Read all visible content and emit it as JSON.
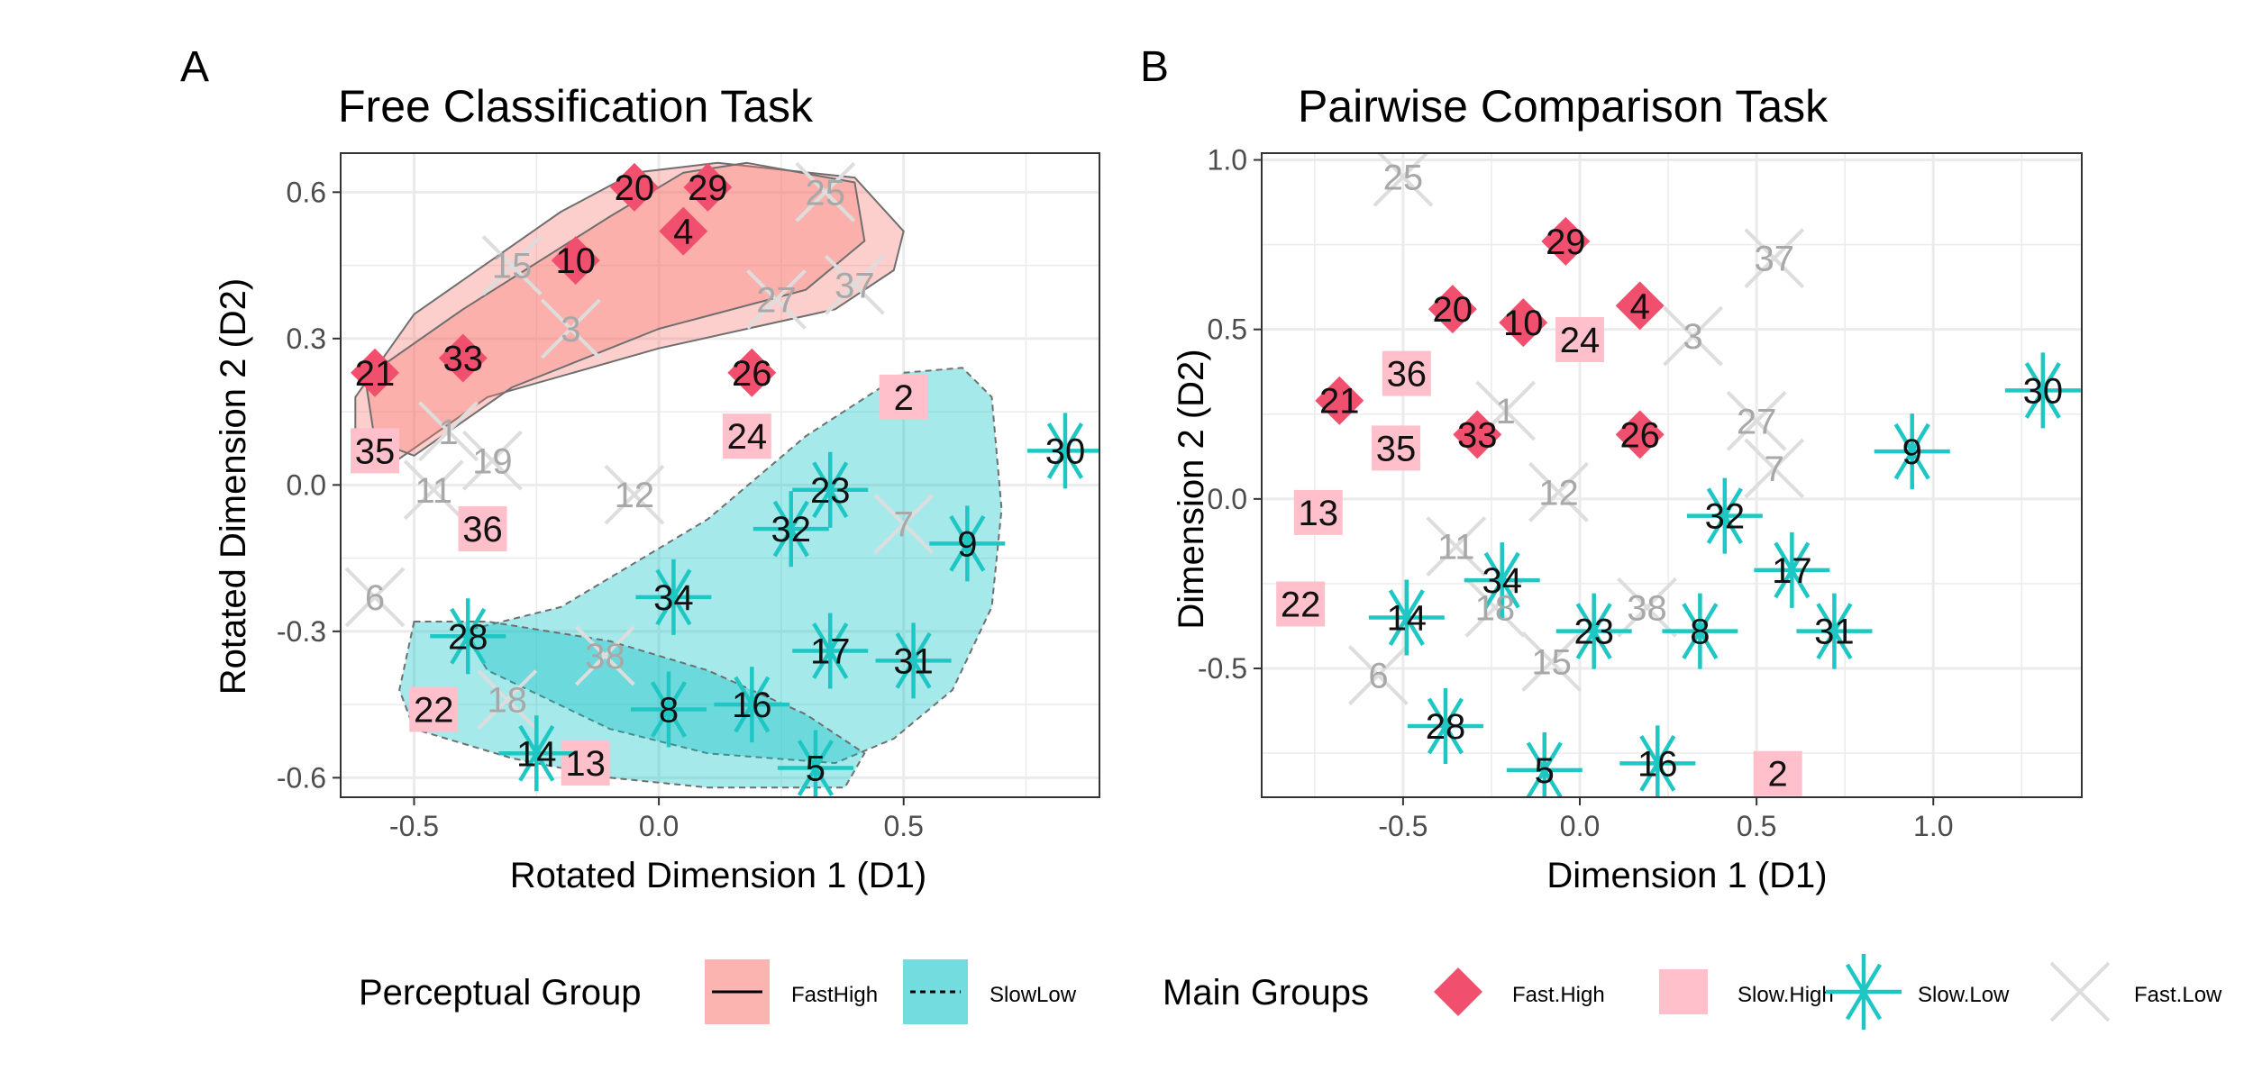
{
  "colors": {
    "fast_high": "#F0506E",
    "slow_high": "#FFC0CB",
    "slow_low": "#1FC7C4",
    "fast_low": "#DDDDDD",
    "fasthigh_fill": "#F8766D",
    "slowlow_fill": "#00BFC4",
    "grid": "#EBEBEB",
    "label_dark": "#111111",
    "label_muted": "#A8A8A8"
  },
  "panels": [
    {
      "letter": "A",
      "chart_data": {
        "type": "scatter",
        "title": "Free Classification Task",
        "xlabel": "Rotated Dimension 1 (D1)",
        "ylabel": "Rotated Dimension 2 (D2)",
        "xlim": [
          -0.65,
          0.9
        ],
        "ylim": [
          -0.64,
          0.68
        ],
        "xticks": [
          -0.5,
          0.0,
          0.5
        ],
        "xtick_labels": [
          "-0.5",
          "0.0",
          "0.5"
        ],
        "yticks": [
          -0.6,
          -0.3,
          0.0,
          0.3,
          0.6
        ],
        "ytick_labels": [
          "-0.6",
          "-0.3",
          "0.0",
          "0.3",
          "0.6"
        ],
        "grid": true,
        "hulls": [
          {
            "group": "FastHigh",
            "linetype": "solid",
            "points": [
              [
                -0.62,
                0.18
              ],
              [
                -0.5,
                0.35
              ],
              [
                -0.2,
                0.56
              ],
              [
                -0.05,
                0.64
              ],
              [
                0.12,
                0.66
              ],
              [
                0.4,
                0.63
              ],
              [
                0.5,
                0.52
              ],
              [
                0.48,
                0.44
              ],
              [
                0.36,
                0.36
              ],
              [
                0.0,
                0.28
              ],
              [
                -0.35,
                0.18
              ],
              [
                -0.55,
                0.04
              ],
              [
                -0.62,
                0.06
              ]
            ]
          },
          {
            "group": "FastHigh",
            "linetype": "solid",
            "points": [
              [
                -0.6,
                0.22
              ],
              [
                -0.4,
                0.36
              ],
              [
                -0.1,
                0.55
              ],
              [
                0.05,
                0.64
              ],
              [
                0.18,
                0.66
              ],
              [
                0.4,
                0.62
              ],
              [
                0.42,
                0.5
              ],
              [
                0.3,
                0.4
              ],
              [
                0.0,
                0.32
              ],
              [
                -0.3,
                0.2
              ],
              [
                -0.5,
                0.06
              ],
              [
                -0.58,
                0.09
              ]
            ]
          },
          {
            "group": "SlowLow",
            "linetype": "dashed",
            "points": [
              [
                0.5,
                0.23
              ],
              [
                0.62,
                0.24
              ],
              [
                0.68,
                0.18
              ],
              [
                0.7,
                -0.05
              ],
              [
                0.68,
                -0.25
              ],
              [
                0.6,
                -0.42
              ],
              [
                0.48,
                -0.52
              ],
              [
                0.36,
                -0.57
              ],
              [
                0.1,
                -0.55
              ],
              [
                -0.1,
                -0.5
              ],
              [
                -0.35,
                -0.38
              ],
              [
                -0.4,
                -0.3
              ],
              [
                -0.2,
                -0.25
              ],
              [
                0.1,
                -0.07
              ],
              [
                0.3,
                0.1
              ]
            ]
          },
          {
            "group": "SlowLow",
            "linetype": "dashed",
            "points": [
              [
                -0.5,
                -0.28
              ],
              [
                -0.35,
                -0.28
              ],
              [
                -0.1,
                -0.32
              ],
              [
                0.1,
                -0.38
              ],
              [
                0.3,
                -0.47
              ],
              [
                0.42,
                -0.55
              ],
              [
                0.38,
                -0.62
              ],
              [
                0.3,
                -0.62
              ],
              [
                0.1,
                -0.62
              ],
              [
                -0.1,
                -0.6
              ],
              [
                -0.3,
                -0.56
              ],
              [
                -0.5,
                -0.5
              ],
              [
                -0.53,
                -0.42
              ]
            ]
          }
        ],
        "points": [
          {
            "label": "20",
            "group": "Fast.High",
            "x": -0.05,
            "y": 0.61
          },
          {
            "label": "29",
            "group": "Fast.High",
            "x": 0.1,
            "y": 0.61
          },
          {
            "label": "4",
            "group": "Fast.High",
            "x": 0.05,
            "y": 0.52
          },
          {
            "label": "10",
            "group": "Fast.High",
            "x": -0.17,
            "y": 0.46
          },
          {
            "label": "21",
            "group": "Fast.High",
            "x": -0.58,
            "y": 0.23
          },
          {
            "label": "33",
            "group": "Fast.High",
            "x": -0.4,
            "y": 0.26
          },
          {
            "label": "26",
            "group": "Fast.High",
            "x": 0.19,
            "y": 0.23
          },
          {
            "label": "2",
            "group": "Slow.High",
            "x": 0.5,
            "y": 0.18
          },
          {
            "label": "24",
            "group": "Slow.High",
            "x": 0.18,
            "y": 0.1
          },
          {
            "label": "35",
            "group": "Slow.High",
            "x": -0.58,
            "y": 0.07
          },
          {
            "label": "36",
            "group": "Slow.High",
            "x": -0.36,
            "y": -0.09
          },
          {
            "label": "22",
            "group": "Slow.High",
            "x": -0.46,
            "y": -0.46
          },
          {
            "label": "13",
            "group": "Slow.High",
            "x": -0.15,
            "y": -0.57
          },
          {
            "label": "30",
            "group": "Slow.Low",
            "x": 0.83,
            "y": 0.07
          },
          {
            "label": "23",
            "group": "Slow.Low",
            "x": 0.35,
            "y": -0.01
          },
          {
            "label": "32",
            "group": "Slow.Low",
            "x": 0.27,
            "y": -0.09
          },
          {
            "label": "9",
            "group": "Slow.Low",
            "x": 0.63,
            "y": -0.12
          },
          {
            "label": "34",
            "group": "Slow.Low",
            "x": 0.03,
            "y": -0.23
          },
          {
            "label": "28",
            "group": "Slow.Low",
            "x": -0.39,
            "y": -0.31
          },
          {
            "label": "17",
            "group": "Slow.Low",
            "x": 0.35,
            "y": -0.34
          },
          {
            "label": "31",
            "group": "Slow.Low",
            "x": 0.52,
            "y": -0.36
          },
          {
            "label": "8",
            "group": "Slow.Low",
            "x": 0.02,
            "y": -0.46
          },
          {
            "label": "16",
            "group": "Slow.Low",
            "x": 0.19,
            "y": -0.45
          },
          {
            "label": "14",
            "group": "Slow.Low",
            "x": -0.25,
            "y": -0.55
          },
          {
            "label": "5",
            "group": "Slow.Low",
            "x": 0.32,
            "y": -0.58
          },
          {
            "label": "25",
            "group": "Fast.Low",
            "x": 0.34,
            "y": 0.6
          },
          {
            "label": "15",
            "group": "Fast.Low",
            "x": -0.3,
            "y": 0.45
          },
          {
            "label": "27",
            "group": "Fast.Low",
            "x": 0.24,
            "y": 0.38
          },
          {
            "label": "37",
            "group": "Fast.Low",
            "x": 0.4,
            "y": 0.41
          },
          {
            "label": "3",
            "group": "Fast.Low",
            "x": -0.18,
            "y": 0.32
          },
          {
            "label": "1",
            "group": "Fast.Low",
            "x": -0.43,
            "y": 0.11
          },
          {
            "label": "19",
            "group": "Fast.Low",
            "x": -0.34,
            "y": 0.05
          },
          {
            "label": "11",
            "group": "Fast.Low",
            "x": -0.46,
            "y": -0.01
          },
          {
            "label": "12",
            "group": "Fast.Low",
            "x": -0.05,
            "y": -0.02
          },
          {
            "label": "7",
            "group": "Fast.Low",
            "x": 0.5,
            "y": -0.08
          },
          {
            "label": "6",
            "group": "Fast.Low",
            "x": -0.58,
            "y": -0.23
          },
          {
            "label": "38",
            "group": "Fast.Low",
            "x": -0.11,
            "y": -0.35
          },
          {
            "label": "18",
            "group": "Fast.Low",
            "x": -0.31,
            "y": -0.44
          }
        ]
      }
    },
    {
      "letter": "B",
      "chart_data": {
        "type": "scatter",
        "title": "Pairwise Comparison Task",
        "xlabel": "Dimension 1 (D1)",
        "ylabel": "Dimension 2 (D2)",
        "xlim": [
          -0.9,
          1.42
        ],
        "ylim": [
          -0.88,
          1.02
        ],
        "xticks": [
          -0.5,
          0.0,
          0.5,
          1.0
        ],
        "xtick_labels": [
          "-0.5",
          "0.0",
          "0.5",
          "1.0"
        ],
        "yticks": [
          -0.5,
          0.0,
          0.5,
          1.0
        ],
        "ytick_labels": [
          "-0.5",
          "0.0",
          "0.5",
          "1.0"
        ],
        "grid": true,
        "hulls": [],
        "points": [
          {
            "label": "29",
            "group": "Fast.High",
            "x": -0.04,
            "y": 0.76
          },
          {
            "label": "20",
            "group": "Fast.High",
            "x": -0.36,
            "y": 0.56
          },
          {
            "label": "10",
            "group": "Fast.High",
            "x": -0.16,
            "y": 0.52
          },
          {
            "label": "4",
            "group": "Fast.High",
            "x": 0.17,
            "y": 0.57
          },
          {
            "label": "21",
            "group": "Fast.High",
            "x": -0.68,
            "y": 0.29
          },
          {
            "label": "33",
            "group": "Fast.High",
            "x": -0.29,
            "y": 0.19
          },
          {
            "label": "26",
            "group": "Fast.High",
            "x": 0.17,
            "y": 0.19
          },
          {
            "label": "24",
            "group": "Slow.High",
            "x": 0.0,
            "y": 0.47
          },
          {
            "label": "36",
            "group": "Slow.High",
            "x": -0.49,
            "y": 0.37
          },
          {
            "label": "35",
            "group": "Slow.High",
            "x": -0.52,
            "y": 0.15
          },
          {
            "label": "13",
            "group": "Slow.High",
            "x": -0.74,
            "y": -0.04
          },
          {
            "label": "22",
            "group": "Slow.High",
            "x": -0.79,
            "y": -0.31
          },
          {
            "label": "2",
            "group": "Slow.High",
            "x": 0.56,
            "y": -0.81
          },
          {
            "label": "30",
            "group": "Slow.Low",
            "x": 1.31,
            "y": 0.32
          },
          {
            "label": "9",
            "group": "Slow.Low",
            "x": 0.94,
            "y": 0.14
          },
          {
            "label": "32",
            "group": "Slow.Low",
            "x": 0.41,
            "y": -0.05
          },
          {
            "label": "17",
            "group": "Slow.Low",
            "x": 0.6,
            "y": -0.21
          },
          {
            "label": "34",
            "group": "Slow.Low",
            "x": -0.22,
            "y": -0.24
          },
          {
            "label": "14",
            "group": "Slow.Low",
            "x": -0.49,
            "y": -0.35
          },
          {
            "label": "23",
            "group": "Slow.Low",
            "x": 0.04,
            "y": -0.39
          },
          {
            "label": "8",
            "group": "Slow.Low",
            "x": 0.34,
            "y": -0.39
          },
          {
            "label": "31",
            "group": "Slow.Low",
            "x": 0.72,
            "y": -0.39
          },
          {
            "label": "28",
            "group": "Slow.Low",
            "x": -0.38,
            "y": -0.67
          },
          {
            "label": "5",
            "group": "Slow.Low",
            "x": -0.1,
            "y": -0.8
          },
          {
            "label": "16",
            "group": "Slow.Low",
            "x": 0.22,
            "y": -0.78
          },
          {
            "label": "25",
            "group": "Fast.Low",
            "x": -0.5,
            "y": 0.95
          },
          {
            "label": "37",
            "group": "Fast.Low",
            "x": 0.55,
            "y": 0.71
          },
          {
            "label": "3",
            "group": "Fast.Low",
            "x": 0.32,
            "y": 0.48
          },
          {
            "label": "1",
            "group": "Fast.Low",
            "x": -0.21,
            "y": 0.26
          },
          {
            "label": "27",
            "group": "Fast.Low",
            "x": 0.5,
            "y": 0.23
          },
          {
            "label": "7",
            "group": "Fast.Low",
            "x": 0.55,
            "y": 0.09
          },
          {
            "label": "12",
            "group": "Fast.Low",
            "x": -0.06,
            "y": 0.02
          },
          {
            "label": "11",
            "group": "Fast.Low",
            "x": -0.35,
            "y": -0.14
          },
          {
            "label": "38",
            "group": "Fast.Low",
            "x": 0.19,
            "y": -0.32
          },
          {
            "label": "18",
            "group": "Fast.Low",
            "x": -0.24,
            "y": -0.32
          },
          {
            "label": "15",
            "group": "Fast.Low",
            "x": -0.08,
            "y": -0.48
          },
          {
            "label": "6",
            "group": "Fast.Low",
            "x": -0.57,
            "y": -0.52
          }
        ]
      }
    }
  ],
  "legend_a": {
    "title": "Perceptual Group",
    "items": [
      {
        "label": "FastHigh",
        "linetype": "solid",
        "fill_key": "fasthigh_fill"
      },
      {
        "label": "SlowLow",
        "linetype": "dashed",
        "fill_key": "slowlow_fill"
      }
    ]
  },
  "legend_b": {
    "title": "Main Groups",
    "items": [
      {
        "label": "Fast.High",
        "shape": "diamond"
      },
      {
        "label": "Slow.High",
        "shape": "square"
      },
      {
        "label": "Slow.Low",
        "shape": "asterisk"
      },
      {
        "label": "Fast.Low",
        "shape": "cross"
      }
    ]
  }
}
